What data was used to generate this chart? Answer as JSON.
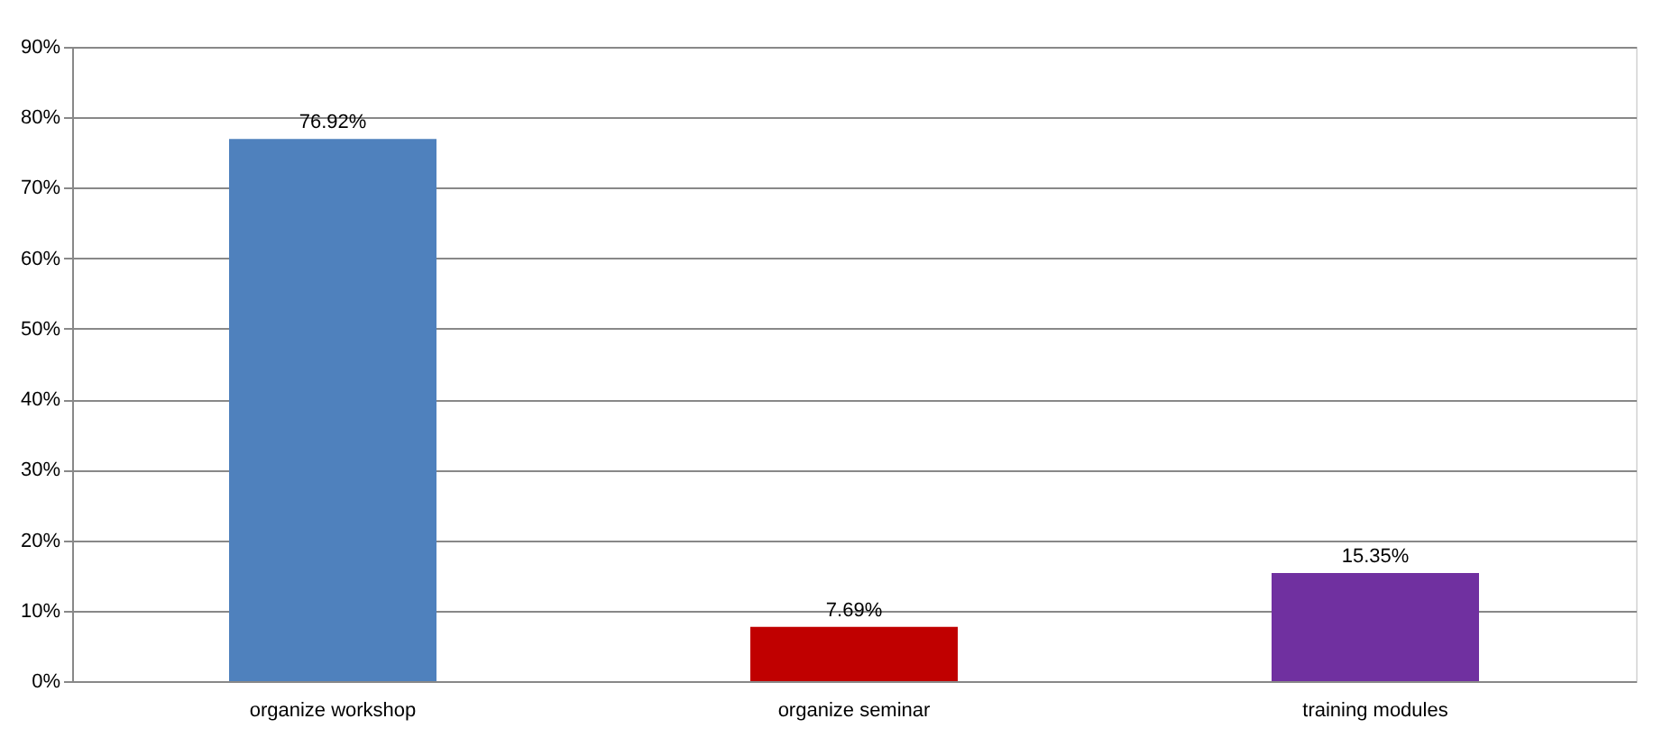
{
  "chart_data": {
    "type": "bar",
    "categories": [
      "organize workshop",
      "organize seminar",
      "training modules"
    ],
    "values": [
      76.92,
      7.69,
      15.35
    ],
    "colors": [
      "#4f81bd",
      "#c00000",
      "#7030a0"
    ],
    "value_labels": [
      "76.92%",
      "7.69%",
      "15.35%"
    ],
    "ylim": [
      0,
      90
    ],
    "yticks": [
      {
        "value": 0,
        "label": "0%"
      },
      {
        "value": 10,
        "label": "10%"
      },
      {
        "value": 20,
        "label": "20%"
      },
      {
        "value": 30,
        "label": "30%"
      },
      {
        "value": 40,
        "label": "40%"
      },
      {
        "value": 50,
        "label": "50%"
      },
      {
        "value": 60,
        "label": "60%"
      },
      {
        "value": 70,
        "label": "70%"
      },
      {
        "value": 80,
        "label": "80%"
      },
      {
        "value": 90,
        "label": "90%"
      }
    ],
    "grid": "y",
    "legend": false
  }
}
